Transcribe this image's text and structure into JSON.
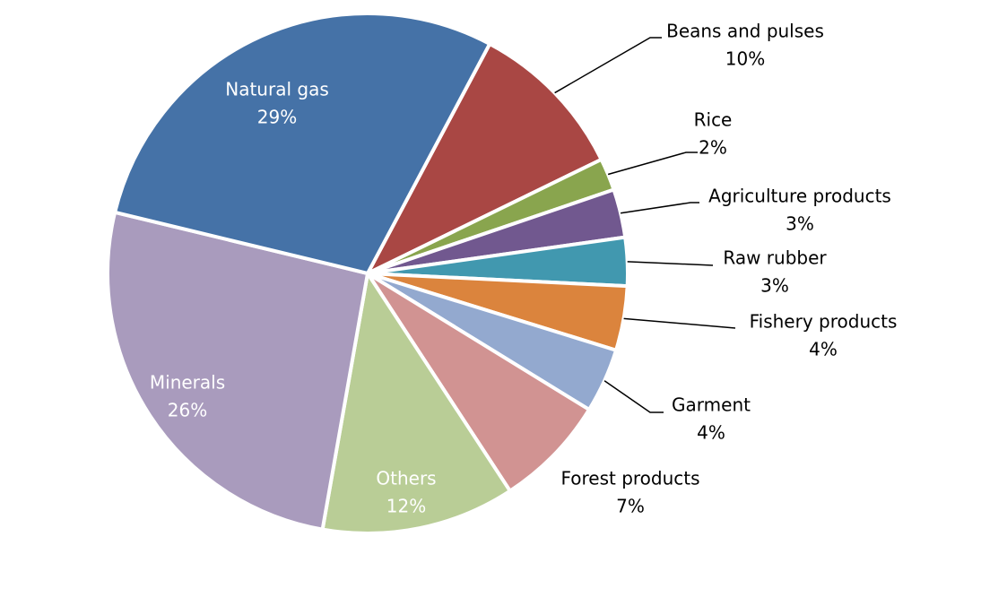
{
  "chart_data": {
    "type": "pie",
    "categories": [
      "Beans and pulses",
      "Rice",
      "Agriculture products",
      "Raw rubber",
      "Fishery products",
      "Garment",
      "Forest products",
      "Others",
      "Minerals",
      "Natural gas"
    ],
    "values": [
      10,
      2,
      3,
      3,
      4,
      4,
      7,
      12,
      26,
      29
    ],
    "value_labels": [
      "10%",
      "2%",
      "3%",
      "3%",
      "4%",
      "4%",
      "7%",
      "12%",
      "26%",
      "29%"
    ],
    "colors": [
      "#a94744",
      "#89a54e",
      "#71588f",
      "#4198af",
      "#db843d",
      "#93a9cf",
      "#d19392",
      "#b9cd96",
      "#a99bbd",
      "#4572a7"
    ]
  }
}
